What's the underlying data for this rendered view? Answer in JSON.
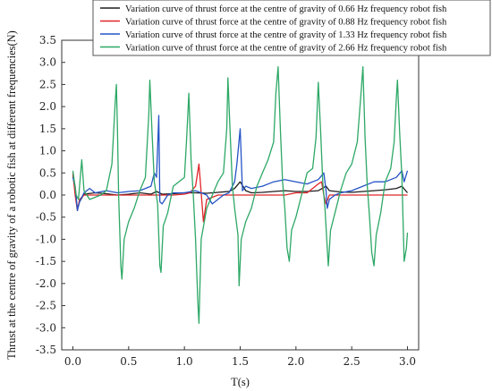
{
  "chart_data": {
    "type": "line",
    "title": "",
    "xlabel": "T(s)",
    "ylabel": "Thrust at the centre of gravity of a robotic fish at different frequencies(N)",
    "xlim": [
      -0.1,
      3.1
    ],
    "ylim": [
      -3.5,
      3.5
    ],
    "xticks": [
      0.0,
      0.5,
      1.0,
      1.5,
      2.0,
      2.5,
      3.0
    ],
    "xtick_labels": [
      "0.0",
      "0.5",
      "1.0",
      "1.5",
      "2.0",
      "2.5",
      "3.0"
    ],
    "yticks": [
      -3.5,
      -3.0,
      -2.5,
      -2.0,
      -1.5,
      -1.0,
      -0.5,
      0.0,
      0.5,
      1.0,
      1.5,
      2.0,
      2.5,
      3.0,
      3.5
    ],
    "ytick_labels": [
      "-3.5",
      "-3.0",
      "-2.5",
      "-2.0",
      "-1.5",
      "-1.0",
      "-0.5",
      "0.0",
      "0.5",
      "1.0",
      "1.5",
      "2.0",
      "2.5",
      "3.0",
      "3.5"
    ],
    "legend_position": "top-right",
    "grid": false,
    "series": [
      {
        "name": "Variation curve of thrust force at the centre of gravity of 0.66 Hz frequency robot fish",
        "color": "#1f1f1f",
        "points": [
          [
            0.0,
            0.45
          ],
          [
            0.02,
            0.1
          ],
          [
            0.04,
            -0.3
          ],
          [
            0.06,
            -0.15
          ],
          [
            0.1,
            0.02
          ],
          [
            0.2,
            0.05
          ],
          [
            0.3,
            0.03
          ],
          [
            0.4,
            0.0
          ],
          [
            0.5,
            0.02
          ],
          [
            0.6,
            0.05
          ],
          [
            0.7,
            0.02
          ],
          [
            0.75,
            0.08
          ],
          [
            0.8,
            0.02
          ],
          [
            0.9,
            0.03
          ],
          [
            1.0,
            0.05
          ],
          [
            1.1,
            0.05
          ],
          [
            1.2,
            0.04
          ],
          [
            1.3,
            0.06
          ],
          [
            1.4,
            0.08
          ],
          [
            1.45,
            0.15
          ],
          [
            1.5,
            0.3
          ],
          [
            1.55,
            0.1
          ],
          [
            1.6,
            0.05
          ],
          [
            1.7,
            0.06
          ],
          [
            1.8,
            0.08
          ],
          [
            1.9,
            0.1
          ],
          [
            2.0,
            0.08
          ],
          [
            2.1,
            0.08
          ],
          [
            2.2,
            0.1
          ],
          [
            2.27,
            0.2
          ],
          [
            2.3,
            0.1
          ],
          [
            2.4,
            0.07
          ],
          [
            2.5,
            0.06
          ],
          [
            2.6,
            0.08
          ],
          [
            2.7,
            0.1
          ],
          [
            2.8,
            0.12
          ],
          [
            2.9,
            0.15
          ],
          [
            2.95,
            0.2
          ],
          [
            3.0,
            0.05
          ]
        ]
      },
      {
        "name": "Variation curve of thrust force at the centre of gravity of 0.88 Hz frequency robot fish",
        "color": "#e0262a",
        "points": [
          [
            0.0,
            0.5
          ],
          [
            0.02,
            0.0
          ],
          [
            0.04,
            -0.35
          ],
          [
            0.06,
            -0.1
          ],
          [
            0.1,
            0.0
          ],
          [
            0.3,
            0.0
          ],
          [
            0.5,
            0.0
          ],
          [
            0.7,
            0.0
          ],
          [
            0.9,
            0.0
          ],
          [
            1.0,
            0.02
          ],
          [
            1.05,
            0.05
          ],
          [
            1.1,
            0.2
          ],
          [
            1.13,
            0.7
          ],
          [
            1.15,
            0.05
          ],
          [
            1.17,
            -0.6
          ],
          [
            1.2,
            -0.1
          ],
          [
            1.25,
            -0.05
          ],
          [
            1.3,
            0.0
          ],
          [
            1.5,
            0.0
          ],
          [
            1.7,
            0.0
          ],
          [
            1.9,
            0.0
          ],
          [
            2.0,
            0.05
          ],
          [
            2.1,
            0.05
          ],
          [
            2.15,
            0.15
          ],
          [
            2.2,
            0.25
          ],
          [
            2.23,
            0.3
          ],
          [
            2.25,
            0.0
          ],
          [
            2.27,
            -0.2
          ],
          [
            2.3,
            0.0
          ],
          [
            2.5,
            0.0
          ],
          [
            2.7,
            0.0
          ],
          [
            2.9,
            0.0
          ],
          [
            3.0,
            0.0
          ]
        ]
      },
      {
        "name": "Variation curve of thrust force at the centre of gravity of 1.33 Hz frequency robot fish",
        "color": "#2554c7",
        "points": [
          [
            0.0,
            0.4
          ],
          [
            0.02,
            0.2
          ],
          [
            0.04,
            -0.35
          ],
          [
            0.06,
            -0.15
          ],
          [
            0.1,
            0.05
          ],
          [
            0.15,
            0.15
          ],
          [
            0.2,
            0.05
          ],
          [
            0.3,
            0.1
          ],
          [
            0.4,
            0.05
          ],
          [
            0.5,
            0.08
          ],
          [
            0.6,
            0.1
          ],
          [
            0.7,
            0.2
          ],
          [
            0.73,
            0.5
          ],
          [
            0.75,
            0.4
          ],
          [
            0.77,
            1.8
          ],
          [
            0.78,
            -0.15
          ],
          [
            0.8,
            -0.2
          ],
          [
            0.85,
            0.0
          ],
          [
            0.9,
            0.05
          ],
          [
            1.0,
            0.05
          ],
          [
            1.1,
            0.1
          ],
          [
            1.15,
            0.05
          ],
          [
            1.2,
            0.0
          ],
          [
            1.25,
            -0.2
          ],
          [
            1.3,
            -0.1
          ],
          [
            1.35,
            0.0
          ],
          [
            1.4,
            0.05
          ],
          [
            1.45,
            0.3
          ],
          [
            1.47,
            0.7
          ],
          [
            1.5,
            1.5
          ],
          [
            1.52,
            0.1
          ],
          [
            1.55,
            0.2
          ],
          [
            1.6,
            0.15
          ],
          [
            1.7,
            0.2
          ],
          [
            1.8,
            0.3
          ],
          [
            1.9,
            0.35
          ],
          [
            2.0,
            0.3
          ],
          [
            2.1,
            0.25
          ],
          [
            2.2,
            0.35
          ],
          [
            2.25,
            0.5
          ],
          [
            2.27,
            0.1
          ],
          [
            2.28,
            -0.3
          ],
          [
            2.3,
            -0.1
          ],
          [
            2.35,
            0.0
          ],
          [
            2.4,
            0.05
          ],
          [
            2.5,
            0.1
          ],
          [
            2.6,
            0.2
          ],
          [
            2.7,
            0.3
          ],
          [
            2.8,
            0.3
          ],
          [
            2.9,
            0.4
          ],
          [
            2.95,
            0.55
          ],
          [
            2.97,
            0.3
          ],
          [
            3.0,
            0.55
          ]
        ]
      },
      {
        "name": "Variation curve of thrust force at the centre of gravity of 2.66 Hz frequency robot fish",
        "color": "#2da866",
        "points": [
          [
            0.0,
            0.55
          ],
          [
            0.03,
            0.0
          ],
          [
            0.05,
            -0.1
          ],
          [
            0.08,
            0.8
          ],
          [
            0.1,
            0.1
          ],
          [
            0.15,
            -0.1
          ],
          [
            0.25,
            0.0
          ],
          [
            0.3,
            0.1
          ],
          [
            0.35,
            0.7
          ],
          [
            0.38,
            2.1
          ],
          [
            0.39,
            2.5
          ],
          [
            0.4,
            1.5
          ],
          [
            0.41,
            0.0
          ],
          [
            0.43,
            -1.6
          ],
          [
            0.44,
            -1.9
          ],
          [
            0.46,
            -1.0
          ],
          [
            0.5,
            -0.6
          ],
          [
            0.55,
            -0.3
          ],
          [
            0.6,
            0.1
          ],
          [
            0.65,
            0.4
          ],
          [
            0.68,
            1.8
          ],
          [
            0.69,
            2.6
          ],
          [
            0.71,
            1.4
          ],
          [
            0.73,
            0.3
          ],
          [
            0.76,
            -0.2
          ],
          [
            0.78,
            -1.6
          ],
          [
            0.79,
            -1.75
          ],
          [
            0.81,
            -0.7
          ],
          [
            0.85,
            -0.4
          ],
          [
            0.9,
            0.2
          ],
          [
            0.95,
            0.3
          ],
          [
            1.0,
            0.4
          ],
          [
            1.02,
            1.3
          ],
          [
            1.04,
            2.3
          ],
          [
            1.06,
            0.8
          ],
          [
            1.08,
            0.0
          ],
          [
            1.1,
            -1.0
          ],
          [
            1.12,
            -2.4
          ],
          [
            1.13,
            -2.9
          ],
          [
            1.15,
            -1.0
          ],
          [
            1.2,
            -0.3
          ],
          [
            1.3,
            0.3
          ],
          [
            1.35,
            0.5
          ],
          [
            1.38,
            1.5
          ],
          [
            1.39,
            2.65
          ],
          [
            1.41,
            1.4
          ],
          [
            1.43,
            0.2
          ],
          [
            1.45,
            -0.3
          ],
          [
            1.48,
            -0.9
          ],
          [
            1.49,
            -2.05
          ],
          [
            1.51,
            -1.0
          ],
          [
            1.55,
            -0.6
          ],
          [
            1.6,
            -0.3
          ],
          [
            1.65,
            0.2
          ],
          [
            1.7,
            0.5
          ],
          [
            1.75,
            0.8
          ],
          [
            1.8,
            1.2
          ],
          [
            1.82,
            2.3
          ],
          [
            1.84,
            2.9
          ],
          [
            1.86,
            1.5
          ],
          [
            1.88,
            0.3
          ],
          [
            1.9,
            -0.3
          ],
          [
            1.92,
            -1.2
          ],
          [
            1.94,
            -1.5
          ],
          [
            1.96,
            -0.8
          ],
          [
            2.0,
            -0.5
          ],
          [
            2.05,
            0.0
          ],
          [
            2.1,
            0.5
          ],
          [
            2.15,
            0.6
          ],
          [
            2.18,
            1.3
          ],
          [
            2.2,
            2.55
          ],
          [
            2.22,
            1.5
          ],
          [
            2.24,
            0.3
          ],
          [
            2.26,
            -0.3
          ],
          [
            2.28,
            -1.2
          ],
          [
            2.29,
            -1.6
          ],
          [
            2.31,
            -0.8
          ],
          [
            2.35,
            -0.4
          ],
          [
            2.4,
            0.1
          ],
          [
            2.45,
            0.5
          ],
          [
            2.5,
            0.7
          ],
          [
            2.55,
            1.2
          ],
          [
            2.58,
            2.2
          ],
          [
            2.6,
            2.9
          ],
          [
            2.62,
            1.3
          ],
          [
            2.64,
            0.2
          ],
          [
            2.66,
            -0.5
          ],
          [
            2.68,
            -1.3
          ],
          [
            2.7,
            -1.6
          ],
          [
            2.72,
            -0.9
          ],
          [
            2.76,
            -0.4
          ],
          [
            2.8,
            0.3
          ],
          [
            2.85,
            0.6
          ],
          [
            2.88,
            1.2
          ],
          [
            2.9,
            2.2
          ],
          [
            2.91,
            2.6
          ],
          [
            2.93,
            1.4
          ],
          [
            2.95,
            0.4
          ],
          [
            2.97,
            -1.5
          ],
          [
            2.99,
            -1.2
          ],
          [
            3.0,
            -0.85
          ]
        ]
      }
    ]
  }
}
